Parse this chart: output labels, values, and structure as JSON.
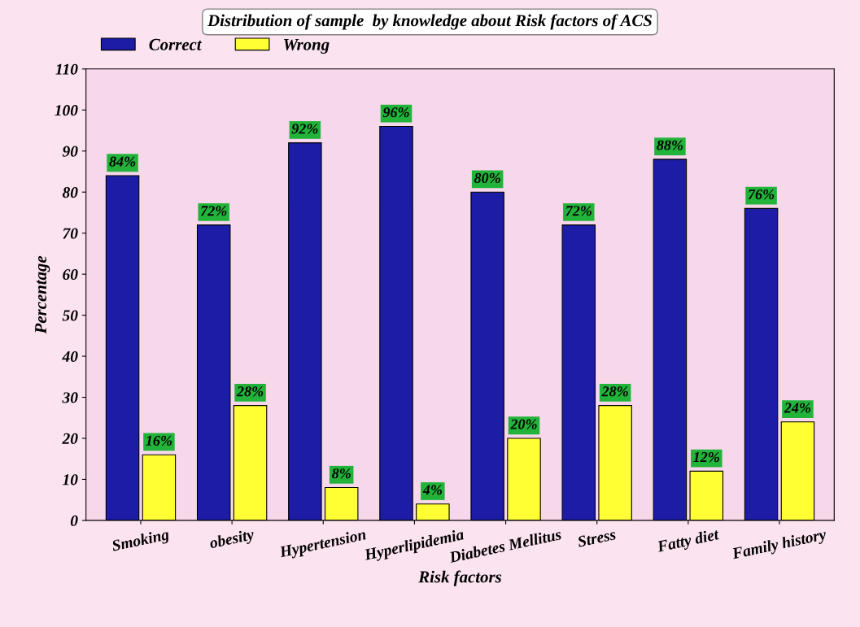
{
  "chart_data": {
    "type": "bar",
    "title": "Distribution of sample  by knowledge about Risk factors of ACS",
    "xlabel": "Risk factors",
    "ylabel": "Percentage",
    "categories": [
      "Smoking",
      "obesity",
      "Hypertension",
      "Hyperlipidemia",
      "Diabetes Mellitus",
      "Stress",
      "Fatty diet",
      "Family history"
    ],
    "series": [
      {
        "name": "Correct",
        "color": "#1c1ca6",
        "values": [
          84,
          72,
          92,
          96,
          80,
          72,
          88,
          76
        ],
        "value_labels": [
          "84%",
          "72%",
          "92%",
          "96%",
          "80%",
          "72%",
          "88%",
          "76%"
        ]
      },
      {
        "name": "Wrong",
        "color": "#ffff33",
        "values": [
          16,
          28,
          8,
          4,
          20,
          28,
          12,
          24
        ],
        "value_labels": [
          "16%",
          "28%",
          "8%",
          "4%",
          "20%",
          "28%",
          "12%",
          "24%"
        ]
      }
    ],
    "ylim": [
      0,
      110
    ],
    "yticks": [
      0,
      10,
      20,
      30,
      40,
      50,
      60,
      70,
      80,
      90,
      100,
      110
    ],
    "legend": "top left",
    "grid": false
  }
}
